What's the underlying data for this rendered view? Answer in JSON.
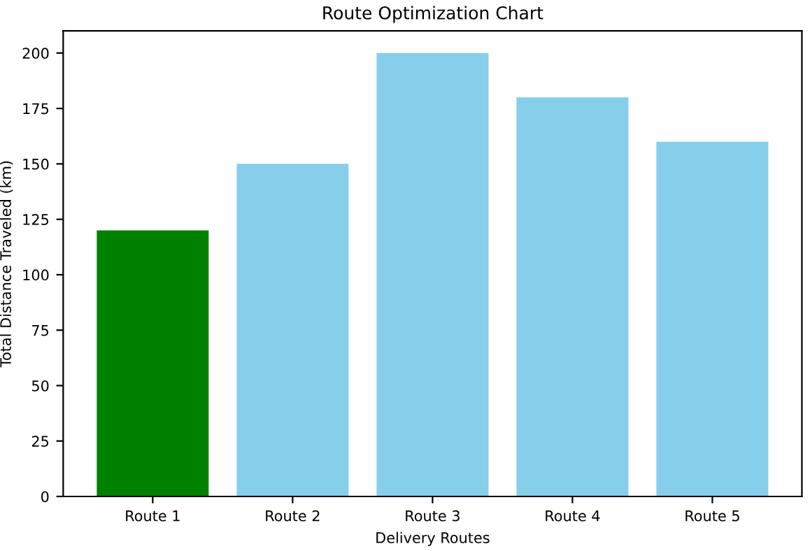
{
  "chart_data": {
    "type": "bar",
    "title": "Route Optimization Chart",
    "xlabel": "Delivery Routes",
    "ylabel": "Total Distance Traveled (km)",
    "categories": [
      "Route 1",
      "Route 2",
      "Route 3",
      "Route 4",
      "Route 5"
    ],
    "values": [
      120,
      150,
      200,
      180,
      160
    ],
    "colors": [
      "#008000",
      "#87ceeb",
      "#87ceeb",
      "#87ceeb",
      "#87ceeb"
    ],
    "ylim": [
      0,
      210
    ],
    "yticks": [
      0,
      25,
      50,
      75,
      100,
      125,
      150,
      175,
      200
    ],
    "grid": false,
    "legend": false
  }
}
